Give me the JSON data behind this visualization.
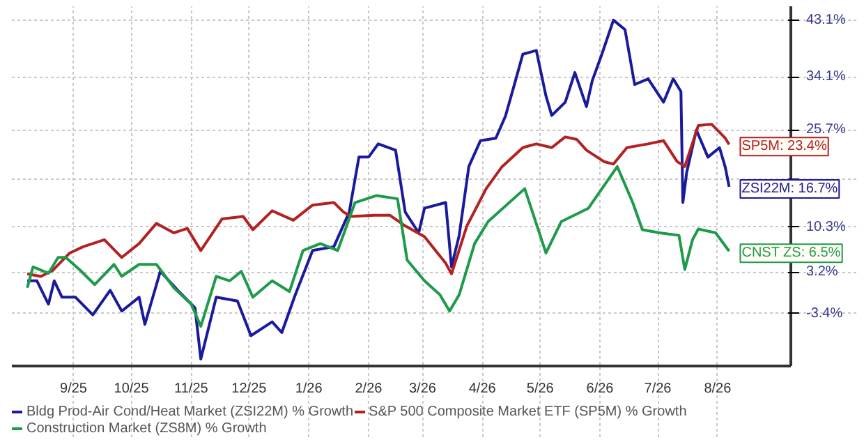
{
  "chart_data": {
    "type": "line",
    "xlim": [
      "2025-08-14",
      "2026-09-22"
    ],
    "xticks": [
      {
        "value": "2025-09-15",
        "label": "9/25"
      },
      {
        "value": "2025-10-15",
        "label": "10/25"
      },
      {
        "value": "2025-11-15",
        "label": "11/25"
      },
      {
        "value": "2025-12-15",
        "label": "12/25"
      },
      {
        "value": "2026-01-15",
        "label": "1/26"
      },
      {
        "value": "2026-02-15",
        "label": "2/26"
      },
      {
        "value": "2026-03-15",
        "label": "3/26"
      },
      {
        "value": "2026-04-15",
        "label": "4/26"
      },
      {
        "value": "2026-05-15",
        "label": "5/26"
      },
      {
        "value": "2026-06-15",
        "label": "6/26"
      },
      {
        "value": "2026-07-15",
        "label": "7/26"
      },
      {
        "value": "2026-08-15",
        "label": "8/26"
      }
    ],
    "ylim": [
      -11.7,
      45.3
    ],
    "yticks": [
      {
        "value": -3.4,
        "label": "-3.4%"
      },
      {
        "value": 3.2,
        "label": "3.2%"
      },
      {
        "value": 10.3,
        "label": "10.3%"
      },
      {
        "value": 17.8,
        "label": null
      },
      {
        "value": 25.7,
        "label": "25.7%"
      },
      {
        "value": 34.1,
        "label": "34.1%"
      },
      {
        "value": 43.1,
        "label": "43.1%"
      }
    ],
    "grid": true,
    "legend": "bottom",
    "marker": "none",
    "line_style": "solid",
    "series": [
      {
        "name": "Bldg Prod-Air Cond/Heat Market (ZSI22M) % Growth",
        "color": "#1a1a9c",
        "x": [
          "2025-08-22",
          "2025-08-27",
          "2025-09-02",
          "2025-09-05",
          "2025-09-09",
          "2025-09-16",
          "2025-09-25",
          "2025-10-04",
          "2025-10-10",
          "2025-10-19",
          "2025-10-22",
          "2025-10-30",
          "2025-11-08",
          "2025-11-17",
          "2025-11-20",
          "2025-11-28",
          "2025-12-09",
          "2025-12-16",
          "2025-12-27",
          "2026-01-01",
          "2026-01-08",
          "2026-01-17",
          "2026-01-28",
          "2026-02-05",
          "2026-02-10",
          "2026-02-15",
          "2026-02-20",
          "2026-03-01",
          "2026-03-06",
          "2026-03-13",
          "2026-03-16",
          "2026-03-27",
          "2026-03-30",
          "2026-04-03",
          "2026-04-08",
          "2026-04-14",
          "2026-04-22",
          "2026-04-27",
          "2026-05-02",
          "2026-05-06",
          "2026-05-13",
          "2026-05-18",
          "2026-05-21",
          "2026-05-28",
          "2026-06-02",
          "2026-06-08",
          "2026-06-11",
          "2026-06-16",
          "2026-06-22",
          "2026-06-28",
          "2026-07-03",
          "2026-07-10",
          "2026-07-18",
          "2026-07-23",
          "2026-07-27",
          "2026-07-28",
          "2026-07-30",
          "2026-08-04",
          "2026-08-10",
          "2026-08-16",
          "2026-08-19",
          "2026-08-21"
        ],
        "values": [
          1.8,
          1.8,
          -1.9,
          1.8,
          -0.8,
          -0.8,
          -3.6,
          0.3,
          -3.0,
          -0.8,
          -5.1,
          3.3,
          0.3,
          -2.5,
          -10.6,
          -0.8,
          -1.4,
          -6.9,
          -4.7,
          -6.4,
          -0.4,
          6.6,
          7.2,
          12.7,
          21.4,
          21.4,
          23.5,
          22.5,
          12.7,
          9.4,
          13.3,
          14.2,
          4.0,
          9.0,
          19.9,
          24.0,
          24.4,
          27.9,
          33.3,
          37.7,
          38.3,
          31.1,
          28.0,
          30.1,
          34.8,
          29.4,
          33.5,
          37.7,
          43.1,
          41.6,
          32.9,
          33.8,
          30.1,
          33.8,
          31.8,
          14.2,
          19.0,
          25.7,
          21.4,
          22.9,
          19.8,
          16.7
        ]
      },
      {
        "name": "S&P 500 Composite Market ETF (SP5M) % Growth",
        "color": "#b22222",
        "x": [
          "2025-08-22",
          "2025-08-29",
          "2025-09-04",
          "2025-09-13",
          "2025-09-20",
          "2025-10-01",
          "2025-10-10",
          "2025-10-19",
          "2025-10-28",
          "2025-11-06",
          "2025-11-13",
          "2025-11-20",
          "2025-12-01",
          "2025-12-12",
          "2025-12-17",
          "2025-12-27",
          "2026-01-07",
          "2026-01-17",
          "2026-01-28",
          "2026-02-02",
          "2026-02-06",
          "2026-02-18",
          "2026-02-26",
          "2026-03-06",
          "2026-03-16",
          "2026-03-27",
          "2026-03-30",
          "2026-04-07",
          "2026-04-17",
          "2026-04-25",
          "2026-05-06",
          "2026-05-13",
          "2026-05-21",
          "2026-05-28",
          "2026-06-03",
          "2026-06-08",
          "2026-06-17",
          "2026-06-22",
          "2026-06-29",
          "2026-07-10",
          "2026-07-18",
          "2026-07-25",
          "2026-07-29",
          "2026-08-05",
          "2026-08-12",
          "2026-08-19",
          "2026-08-21"
        ],
        "values": [
          2.9,
          2.5,
          3.4,
          6.2,
          7.2,
          8.3,
          5.5,
          7.7,
          10.9,
          9.4,
          10.1,
          6.6,
          11.6,
          12.0,
          9.9,
          12.9,
          11.4,
          13.8,
          14.2,
          12.7,
          12.0,
          12.2,
          12.2,
          10.5,
          8.8,
          4.6,
          2.9,
          10.5,
          16.4,
          19.8,
          22.9,
          23.5,
          22.9,
          24.6,
          24.2,
          22.5,
          20.7,
          20.3,
          22.9,
          23.5,
          24.0,
          20.7,
          19.9,
          26.4,
          26.6,
          24.4,
          23.4
        ]
      },
      {
        "name": "Construction Market (ZS8M) % Growth",
        "color": "#1f9a4a",
        "x": [
          "2025-08-22",
          "2025-08-25",
          "2025-09-02",
          "2025-09-07",
          "2025-09-11",
          "2025-09-18",
          "2025-09-26",
          "2025-10-06",
          "2025-10-10",
          "2025-10-19",
          "2025-10-28",
          "2025-11-06",
          "2025-11-15",
          "2025-11-20",
          "2025-11-28",
          "2025-12-05",
          "2025-12-11",
          "2025-12-17",
          "2025-12-27",
          "2026-01-05",
          "2026-01-12",
          "2026-01-21",
          "2026-01-30",
          "2026-02-08",
          "2026-02-19",
          "2026-03-02",
          "2026-03-07",
          "2026-03-16",
          "2026-03-24",
          "2026-03-29",
          "2026-04-03",
          "2026-04-11",
          "2026-04-18",
          "2026-05-07",
          "2026-05-18",
          "2026-05-26",
          "2026-06-09",
          "2026-06-24",
          "2026-07-02",
          "2026-07-07",
          "2026-07-16",
          "2026-07-26",
          "2026-07-29",
          "2026-08-02",
          "2026-08-05",
          "2026-08-14",
          "2026-08-21"
        ],
        "values": [
          0.7,
          4.0,
          3.0,
          5.5,
          5.5,
          3.6,
          1.2,
          4.4,
          2.5,
          4.4,
          4.4,
          0.7,
          -1.9,
          -5.4,
          2.5,
          1.8,
          3.3,
          -0.8,
          1.8,
          0.1,
          6.6,
          7.7,
          6.6,
          14.2,
          15.3,
          14.8,
          5.1,
          1.8,
          -0.4,
          -3.0,
          -0.4,
          7.7,
          11.2,
          16.4,
          6.2,
          11.2,
          13.3,
          19.9,
          14.2,
          9.9,
          9.4,
          9.0,
          3.6,
          8.3,
          10.0,
          9.4,
          6.5
        ]
      }
    ],
    "annotations": [
      {
        "text": "ZSI22M: 16.7%",
        "x": "2026-08-21",
        "y": 16.7
      },
      {
        "text": "SP5M: 23.4%",
        "x": "2026-08-21",
        "y": 23.4
      },
      {
        "text": "CNST ZS: 6.5%",
        "x": "2026-08-21",
        "y": 6.5
      }
    ]
  }
}
